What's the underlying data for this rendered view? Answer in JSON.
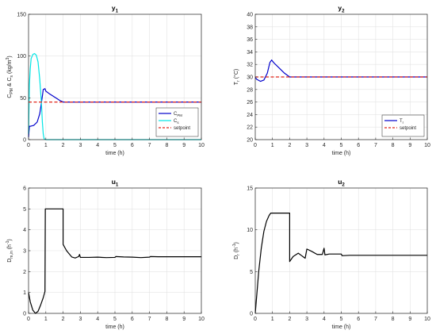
{
  "chart_data": [
    {
      "type": "line",
      "title": "y",
      "title_sub": "1",
      "xlabel": "time (h)",
      "ylabel_parts": [
        [
          "C",
          ""
        ],
        [
          "PM",
          "sub"
        ],
        [
          " & C",
          ""
        ],
        [
          "s",
          "sub"
        ],
        [
          " (kg/m",
          ""
        ],
        [
          "3",
          "sup"
        ],
        [
          ")",
          ""
        ]
      ],
      "xlim": [
        0,
        10
      ],
      "ylim": [
        0,
        150
      ],
      "xticks": [
        0,
        1,
        2,
        3,
        4,
        5,
        6,
        7,
        8,
        9,
        10
      ],
      "yticks": [
        0,
        50,
        100,
        150
      ],
      "grid": true,
      "legend": {
        "position": "bottom-right",
        "entries": [
          {
            "parts": [
              [
                "C",
                ""
              ],
              [
                "PM",
                "sub"
              ]
            ],
            "color": "#0000cc",
            "dash": false
          },
          {
            "parts": [
              [
                "C",
                ""
              ],
              [
                "s",
                "sub"
              ]
            ],
            "color": "#00e5e5",
            "dash": false
          },
          {
            "parts": [
              [
                "setpoint",
                ""
              ]
            ],
            "color": "#e0261b",
            "dash": true
          }
        ]
      },
      "series": [
        {
          "color": "#0000cc",
          "dash": false,
          "points": [
            [
              0,
              3
            ],
            [
              0.05,
              16
            ],
            [
              0.1,
              16
            ],
            [
              0.3,
              17
            ],
            [
              0.5,
              21
            ],
            [
              0.65,
              31
            ],
            [
              0.75,
              45
            ],
            [
              0.8,
              52
            ],
            [
              0.85,
              60
            ],
            [
              0.95,
              61
            ],
            [
              1.0,
              58
            ],
            [
              1.2,
              55
            ],
            [
              1.5,
              51
            ],
            [
              1.8,
              47
            ],
            [
              2.0,
              45
            ],
            [
              10,
              45
            ]
          ]
        },
        {
          "color": "#00e5e5",
          "dash": false,
          "points": [
            [
              0,
              7
            ],
            [
              0.05,
              66
            ],
            [
              0.1,
              85
            ],
            [
              0.15,
              97
            ],
            [
              0.25,
              102
            ],
            [
              0.35,
              103
            ],
            [
              0.45,
              101
            ],
            [
              0.55,
              93
            ],
            [
              0.65,
              72
            ],
            [
              0.75,
              42
            ],
            [
              0.8,
              21
            ],
            [
              0.85,
              7
            ],
            [
              0.9,
              1
            ],
            [
              1.0,
              0
            ],
            [
              10,
              0
            ]
          ]
        },
        {
          "color": "#e0261b",
          "dash": true,
          "points": [
            [
              0,
              45
            ],
            [
              10,
              45
            ]
          ]
        }
      ]
    },
    {
      "type": "line",
      "title": "y",
      "title_sub": "2",
      "xlabel": "time (h)",
      "ylabel_parts": [
        [
          "T",
          ""
        ],
        [
          "r",
          "sub"
        ],
        [
          " (°C)",
          ""
        ]
      ],
      "xlim": [
        0,
        10
      ],
      "ylim": [
        20,
        40
      ],
      "xticks": [
        0,
        1,
        2,
        3,
        4,
        5,
        6,
        7,
        8,
        9,
        10
      ],
      "yticks": [
        20,
        22,
        24,
        26,
        28,
        30,
        32,
        34,
        36,
        38,
        40
      ],
      "grid": true,
      "legend": {
        "position": "bottom-right",
        "entries": [
          {
            "parts": [
              [
                "T",
                ""
              ],
              [
                "r",
                "sub"
              ]
            ],
            "color": "#0000cc",
            "dash": false
          },
          {
            "parts": [
              [
                "setpoint",
                ""
              ]
            ],
            "color": "#e0261b",
            "dash": true
          }
        ]
      },
      "series": [
        {
          "color": "#0000cc",
          "dash": false,
          "points": [
            [
              0,
              29.9
            ],
            [
              0.1,
              29.6
            ],
            [
              0.3,
              29.3
            ],
            [
              0.5,
              29.5
            ],
            [
              0.7,
              30.6
            ],
            [
              0.85,
              32.3
            ],
            [
              0.95,
              32.7
            ],
            [
              1.1,
              32.2
            ],
            [
              1.4,
              31.4
            ],
            [
              1.7,
              30.6
            ],
            [
              2.0,
              30.0
            ],
            [
              10,
              30.0
            ]
          ]
        },
        {
          "color": "#e0261b",
          "dash": true,
          "points": [
            [
              0,
              30
            ],
            [
              10,
              30
            ]
          ]
        }
      ]
    },
    {
      "type": "line",
      "title": "u",
      "title_sub": "1",
      "xlabel": "time (h)",
      "ylabel_parts": [
        [
          "D",
          ""
        ],
        [
          "m,in",
          "sub"
        ],
        [
          " (h",
          ""
        ],
        [
          "-1",
          "sup"
        ],
        [
          ")",
          ""
        ]
      ],
      "xlim": [
        0,
        10
      ],
      "ylim": [
        0,
        6
      ],
      "xticks": [
        0,
        1,
        2,
        3,
        4,
        5,
        6,
        7,
        8,
        9,
        10
      ],
      "yticks": [
        0,
        1,
        2,
        3,
        4,
        5,
        6
      ],
      "grid": true,
      "series": [
        {
          "color": "#000000",
          "dash": false,
          "points": [
            [
              0,
              1.0
            ],
            [
              0.1,
              0.55
            ],
            [
              0.25,
              0.15
            ],
            [
              0.4,
              0.0
            ],
            [
              0.55,
              0.1
            ],
            [
              0.7,
              0.4
            ],
            [
              0.85,
              0.75
            ],
            [
              0.95,
              1.05
            ],
            [
              0.97,
              5.0
            ],
            [
              2.0,
              5.0
            ],
            [
              2.0,
              3.3
            ],
            [
              2.2,
              3.0
            ],
            [
              2.5,
              2.7
            ],
            [
              2.7,
              2.65
            ],
            [
              2.9,
              2.72
            ],
            [
              2.95,
              2.82
            ],
            [
              3.0,
              2.68
            ],
            [
              3.5,
              2.68
            ],
            [
              4.0,
              2.69
            ],
            [
              4.5,
              2.67
            ],
            [
              5.0,
              2.68
            ],
            [
              5.05,
              2.72
            ],
            [
              5.5,
              2.7
            ],
            [
              6.0,
              2.69
            ],
            [
              6.5,
              2.67
            ],
            [
              7.0,
              2.69
            ],
            [
              7.05,
              2.72
            ],
            [
              7.5,
              2.71
            ],
            [
              8.0,
              2.71
            ],
            [
              9.0,
              2.71
            ],
            [
              10,
              2.71
            ]
          ]
        }
      ]
    },
    {
      "type": "line",
      "title": "u",
      "title_sub": "2",
      "xlabel": "time (h)",
      "ylabel_parts": [
        [
          "D",
          ""
        ],
        [
          "r",
          "sub"
        ],
        [
          " (h",
          ""
        ],
        [
          "-1",
          "sup"
        ],
        [
          ")",
          ""
        ]
      ],
      "xlim": [
        0,
        10
      ],
      "ylim": [
        0,
        15
      ],
      "xticks": [
        0,
        1,
        2,
        3,
        4,
        5,
        6,
        7,
        8,
        9,
        10
      ],
      "yticks": [
        0,
        5,
        10,
        15
      ],
      "grid": true,
      "series": [
        {
          "color": "#000000",
          "dash": false,
          "points": [
            [
              0,
              0
            ],
            [
              0.1,
              2.5
            ],
            [
              0.2,
              5.0
            ],
            [
              0.35,
              7.8
            ],
            [
              0.5,
              9.8
            ],
            [
              0.65,
              11.0
            ],
            [
              0.8,
              11.7
            ],
            [
              0.9,
              12.0
            ],
            [
              2.0,
              12.0
            ],
            [
              2.0,
              6.2
            ],
            [
              2.2,
              6.8
            ],
            [
              2.5,
              7.2
            ],
            [
              2.7,
              6.9
            ],
            [
              2.9,
              6.6
            ],
            [
              3.0,
              7.7
            ],
            [
              3.3,
              7.4
            ],
            [
              3.6,
              7.05
            ],
            [
              3.9,
              7.05
            ],
            [
              4.0,
              7.8
            ],
            [
              4.05,
              7.0
            ],
            [
              4.3,
              7.1
            ],
            [
              5.0,
              7.1
            ],
            [
              5.05,
              6.9
            ],
            [
              5.5,
              6.95
            ],
            [
              6.0,
              6.95
            ],
            [
              7.0,
              6.95
            ],
            [
              8.0,
              6.95
            ],
            [
              9.0,
              6.95
            ],
            [
              10,
              6.95
            ]
          ]
        }
      ]
    }
  ]
}
